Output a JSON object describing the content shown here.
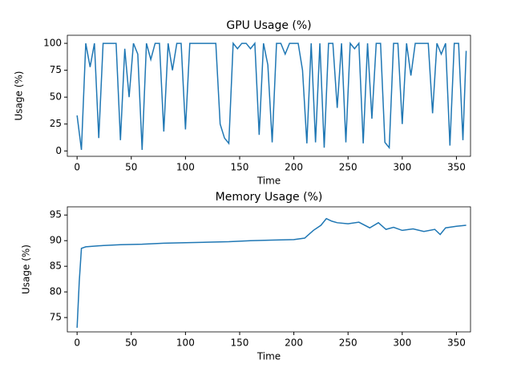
{
  "chart_data": [
    {
      "type": "line",
      "title": "GPU Usage (%)",
      "x_label": "Time",
      "y_label": "Usage (%)",
      "x": [
        0,
        4,
        8,
        12,
        16,
        20,
        24,
        28,
        32,
        36,
        40,
        44,
        48,
        52,
        56,
        60,
        64,
        68,
        72,
        76,
        80,
        84,
        88,
        92,
        96,
        100,
        104,
        108,
        112,
        116,
        120,
        124,
        128,
        132,
        136,
        140,
        144,
        148,
        152,
        156,
        160,
        164,
        168,
        172,
        176,
        180,
        184,
        188,
        192,
        196,
        200,
        204,
        208,
        212,
        216,
        220,
        224,
        228,
        232,
        236,
        240,
        244,
        248,
        252,
        256,
        260,
        264,
        268,
        272,
        276,
        280,
        284,
        288,
        292,
        296,
        300,
        304,
        308,
        312,
        316,
        320,
        324,
        328,
        332,
        336,
        340,
        344,
        348,
        352,
        356,
        359
      ],
      "series": [
        {
          "name": "GPU",
          "color": "#1f77b4",
          "values": [
            33,
            1,
            100,
            78,
            100,
            12,
            100,
            100,
            100,
            100,
            10,
            95,
            50,
            100,
            90,
            1,
            100,
            85,
            100,
            100,
            18,
            100,
            75,
            100,
            100,
            20,
            100,
            100,
            100,
            100,
            100,
            100,
            100,
            25,
            12,
            7,
            100,
            95,
            100,
            100,
            95,
            100,
            15,
            100,
            80,
            8,
            100,
            100,
            90,
            100,
            100,
            100,
            75,
            7,
            100,
            8,
            100,
            3,
            100,
            100,
            40,
            100,
            8,
            100,
            95,
            100,
            7,
            100,
            30,
            100,
            100,
            8,
            3,
            100,
            100,
            25,
            100,
            70,
            100,
            100,
            100,
            100,
            35,
            100,
            90,
            100,
            5,
            100,
            100,
            10,
            93
          ]
        }
      ],
      "xlim": [
        -9,
        363
      ],
      "ylim": [
        -5,
        107.5
      ],
      "xticks": [
        0,
        50,
        100,
        150,
        200,
        250,
        300,
        350
      ],
      "yticks": [
        0,
        25,
        50,
        75,
        100
      ]
    },
    {
      "type": "line",
      "title": "Memory Usage (%)",
      "x_label": "Time",
      "y_label": "Usage (%)",
      "x": [
        0,
        2,
        4,
        8,
        20,
        40,
        60,
        80,
        100,
        120,
        140,
        160,
        180,
        200,
        210,
        218,
        225,
        230,
        235,
        240,
        250,
        260,
        270,
        278,
        285,
        292,
        300,
        310,
        320,
        330,
        335,
        340,
        350,
        359
      ],
      "series": [
        {
          "name": "Memory",
          "color": "#1f77b4",
          "values": [
            73,
            82,
            88.5,
            88.8,
            89,
            89.2,
            89.3,
            89.5,
            89.6,
            89.7,
            89.8,
            90,
            90.1,
            90.2,
            90.5,
            92,
            93,
            94.3,
            93.8,
            93.5,
            93.3,
            93.6,
            92.5,
            93.5,
            92.2,
            92.6,
            92,
            92.3,
            91.8,
            92.2,
            91.2,
            92.5,
            92.8,
            93
          ]
        }
      ],
      "xlim": [
        -9,
        363
      ],
      "ylim": [
        72.2,
        96.6
      ],
      "xticks": [
        0,
        50,
        100,
        150,
        200,
        250,
        300,
        350
      ],
      "yticks": [
        75,
        80,
        85,
        90,
        95
      ]
    }
  ]
}
